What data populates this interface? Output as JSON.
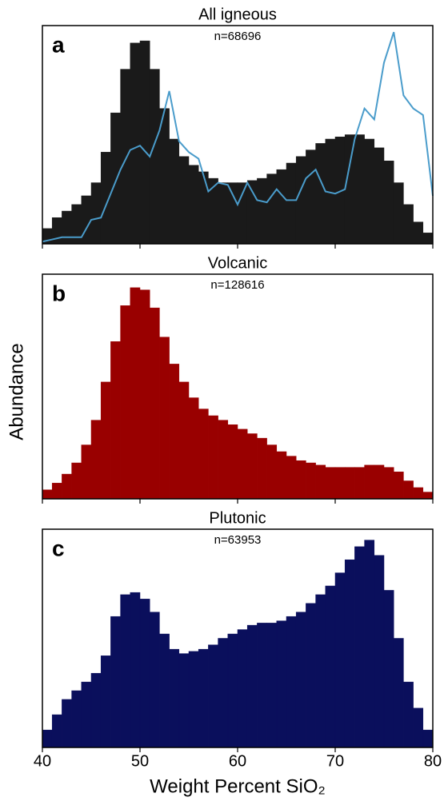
{
  "chart_data": [
    {
      "type": "histogram",
      "title": "All igneous",
      "subtitle": "n=68696",
      "panel_label": "a",
      "color": "#1a1a1a",
      "bins": [
        40,
        41,
        42,
        43,
        44,
        45,
        46,
        47,
        48,
        49,
        50,
        51,
        52,
        53,
        54,
        55,
        56,
        57,
        58,
        59,
        60,
        61,
        62,
        63,
        64,
        65,
        66,
        67,
        68,
        69,
        70,
        71,
        72,
        73,
        74,
        75,
        76,
        77,
        78,
        79,
        80
      ],
      "values": [
        7,
        12,
        15,
        18,
        22,
        28,
        42,
        60,
        80,
        92,
        93,
        80,
        62,
        48,
        40,
        36,
        33,
        30,
        28,
        28,
        28,
        29,
        30,
        32,
        34,
        37,
        40,
        43,
        46,
        48,
        49,
        50,
        50,
        48,
        44,
        38,
        28,
        18,
        10,
        5
      ],
      "overlay": {
        "type": "line",
        "color": "#4a9ccb",
        "x": [
          40,
          41,
          42,
          43,
          44,
          45,
          46,
          47,
          48,
          49,
          50,
          51,
          52,
          53,
          54,
          55,
          56,
          57,
          58,
          59,
          60,
          61,
          62,
          63,
          64,
          65,
          66,
          67,
          68,
          69,
          70,
          71,
          72,
          73,
          74,
          75,
          76,
          77,
          78,
          79,
          80
        ],
        "values": [
          1,
          2,
          3,
          3,
          3,
          11,
          12,
          23,
          34,
          43,
          45,
          40,
          52,
          70,
          47,
          42,
          39,
          24,
          28,
          27,
          18,
          28,
          20,
          19,
          25,
          20,
          20,
          30,
          34,
          24,
          23,
          25,
          48,
          62,
          57,
          83,
          97,
          68,
          62,
          59,
          22
        ]
      },
      "xlim": [
        40,
        80
      ],
      "ylim": [
        0,
        100
      ],
      "xticks": [
        40,
        50,
        60,
        70,
        80
      ],
      "tick_labels": false
    },
    {
      "type": "histogram",
      "title": "Volcanic",
      "subtitle": "n=128616",
      "panel_label": "b",
      "color": "#990000",
      "bins": [
        40,
        41,
        42,
        43,
        44,
        45,
        46,
        47,
        48,
        49,
        50,
        51,
        52,
        53,
        54,
        55,
        56,
        57,
        58,
        59,
        60,
        61,
        62,
        63,
        64,
        65,
        66,
        67,
        68,
        69,
        70,
        71,
        72,
        73,
        74,
        75,
        76,
        77,
        78,
        79,
        80
      ],
      "values": [
        4,
        7,
        11,
        16,
        24,
        35,
        52,
        70,
        86,
        94,
        93,
        85,
        72,
        60,
        52,
        45,
        40,
        37,
        35,
        33,
        31,
        29,
        27,
        24,
        21,
        19,
        17,
        16,
        15,
        14,
        14,
        14,
        14,
        15,
        15,
        14,
        12,
        8,
        5,
        3
      ],
      "xlim": [
        40,
        80
      ],
      "ylim": [
        0,
        100
      ],
      "xticks": [
        40,
        50,
        60,
        70,
        80
      ],
      "tick_labels": false
    },
    {
      "type": "histogram",
      "title": "Plutonic",
      "subtitle": "n=63953",
      "panel_label": "c",
      "color": "#0a0f5c",
      "bins": [
        40,
        41,
        42,
        43,
        44,
        45,
        46,
        47,
        48,
        49,
        50,
        51,
        52,
        53,
        54,
        55,
        56,
        57,
        58,
        59,
        60,
        61,
        62,
        63,
        64,
        65,
        66,
        67,
        68,
        69,
        70,
        71,
        72,
        73,
        74,
        75,
        76,
        77,
        78,
        79,
        80
      ],
      "values": [
        8,
        15,
        22,
        26,
        30,
        34,
        42,
        60,
        70,
        71,
        68,
        62,
        52,
        45,
        43,
        44,
        45,
        47,
        50,
        52,
        54,
        56,
        57,
        57,
        58,
        60,
        62,
        66,
        70,
        74,
        80,
        86,
        92,
        95,
        88,
        72,
        50,
        30,
        18,
        8
      ],
      "xlim": [
        40,
        80
      ],
      "ylim": [
        0,
        100
      ],
      "xticks": [
        40,
        50,
        60,
        70,
        80
      ],
      "tick_labels": true,
      "xlabel": "Weight Percent SiO₂",
      "ylabel": "Abundance"
    }
  ]
}
